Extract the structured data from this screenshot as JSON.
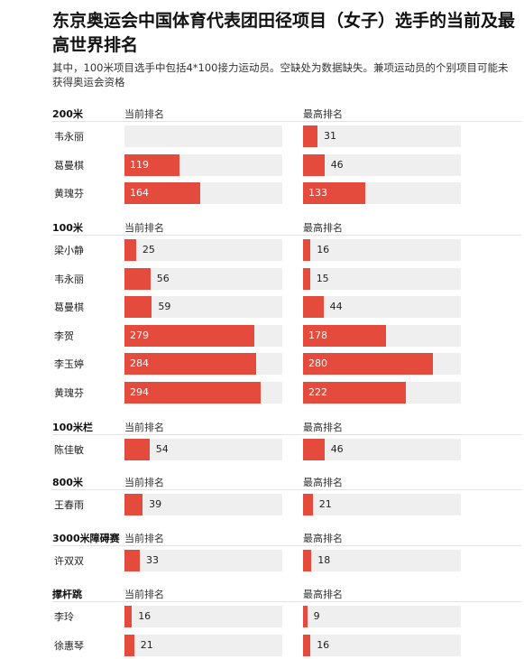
{
  "chart_data": {
    "type": "bar",
    "title": "东京奥运会中国体育代表团田径项目（女子）选手的当前及最高世界排名",
    "subtitle": "其中，100米项目选手中包括4*100接力运动员。空缺处为数据缺失。兼项运动员的个别项目可能未获得奥运会资格",
    "orientation": "horizontal",
    "columns": [
      {
        "key": "current",
        "label": "当前排名"
      },
      {
        "key": "best",
        "label": "最高排名"
      }
    ],
    "colors": {
      "bar": "#e44b3c",
      "track": "#efefef"
    },
    "scale_max": 340,
    "groups": [
      {
        "event": "200米",
        "athletes": [
          {
            "name": "韦永丽",
            "current": null,
            "best": 31
          },
          {
            "name": "葛曼棋",
            "current": 119,
            "best": 46
          },
          {
            "name": "黄瑰芬",
            "current": 164,
            "best": 133
          }
        ]
      },
      {
        "event": "100米",
        "athletes": [
          {
            "name": "梁小静",
            "current": 25,
            "best": 16
          },
          {
            "name": "韦永丽",
            "current": 56,
            "best": 15
          },
          {
            "name": "葛曼棋",
            "current": 59,
            "best": 44
          },
          {
            "name": "李贺",
            "current": 279,
            "best": 178
          },
          {
            "name": "李玉婷",
            "current": 284,
            "best": 280
          },
          {
            "name": "黄瑰芬",
            "current": 294,
            "best": 222
          }
        ]
      },
      {
        "event": "100米栏",
        "athletes": [
          {
            "name": "陈佳敏",
            "current": 54,
            "best": 46
          }
        ]
      },
      {
        "event": "800米",
        "athletes": [
          {
            "name": "王春雨",
            "current": 39,
            "best": 21
          }
        ]
      },
      {
        "event": "3000米障碍赛",
        "athletes": [
          {
            "name": "许双双",
            "current": 33,
            "best": 18
          }
        ]
      },
      {
        "event": "撑杆跳",
        "athletes": [
          {
            "name": "李玲",
            "current": 16,
            "best": 9
          },
          {
            "name": "徐惠琴",
            "current": 21,
            "best": 16
          }
        ]
      }
    ]
  }
}
